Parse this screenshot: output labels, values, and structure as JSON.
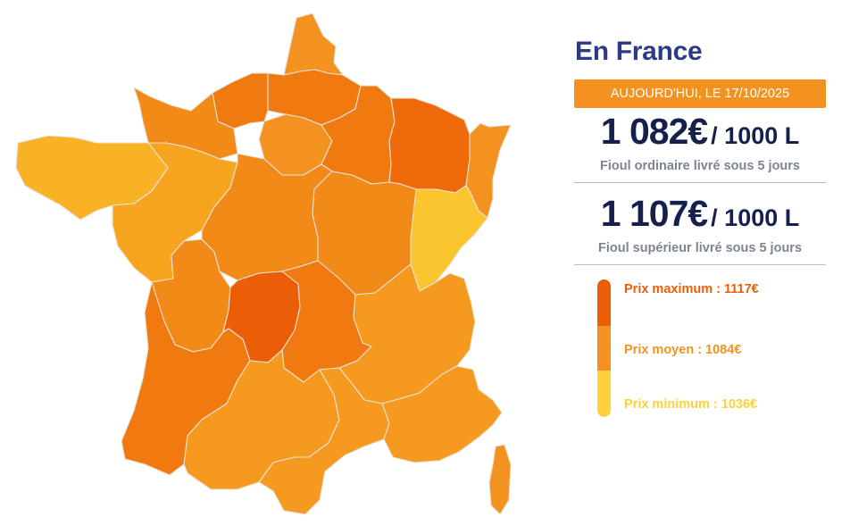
{
  "panel": {
    "title": "En France",
    "date_banner": "AUJOURD'HUI, LE 17/10/2025",
    "prices": [
      {
        "value": "1 082€",
        "unit": "/ 1000 L",
        "description": "Fioul ordinaire livré sous 5 jours"
      },
      {
        "value": "1 107€",
        "unit": "/ 1000 L",
        "description": "Fioul supérieur livré sous 5 jours"
      }
    ],
    "legend": {
      "max_label": "Prix maximum : 1117€",
      "avg_label": "Prix moyen : 1084€",
      "min_label": "Prix minimum : 1036€"
    }
  },
  "colors": {
    "title": "#2b3c84",
    "banner": "#f39220",
    "price": "#16204d",
    "max": "#ec5e06",
    "avg": "#f39220",
    "min": "#fdd238",
    "region_border": "#e8e2da"
  },
  "map": {
    "regions": [
      {
        "id": "nord",
        "shade": "avg"
      },
      {
        "id": "picardie",
        "shade": "orange2"
      },
      {
        "id": "haute-normandie",
        "shade": "orange2"
      },
      {
        "id": "basse-normandie",
        "shade": "orange3"
      },
      {
        "id": "ile-de-france",
        "shade": "avg"
      },
      {
        "id": "champagne-ardenne",
        "shade": "orange2"
      },
      {
        "id": "lorraine",
        "shade": "max2"
      },
      {
        "id": "alsace",
        "shade": "avg"
      },
      {
        "id": "bretagne",
        "shade": "light"
      },
      {
        "id": "pays-de-la-loire",
        "shade": "light2"
      },
      {
        "id": "centre",
        "shade": "orange3"
      },
      {
        "id": "bourgogne",
        "shade": "orange3"
      },
      {
        "id": "franche-comte",
        "shade": "min"
      },
      {
        "id": "poitou-charentes",
        "shade": "orange3"
      },
      {
        "id": "limousin",
        "shade": "max"
      },
      {
        "id": "auvergne",
        "shade": "orange2"
      },
      {
        "id": "rhone-alpes",
        "shade": "avg2"
      },
      {
        "id": "aquitaine",
        "shade": "orange2"
      },
      {
        "id": "midi-pyrenees",
        "shade": "avg2"
      },
      {
        "id": "languedoc-roussillon",
        "shade": "avg2"
      },
      {
        "id": "paca",
        "shade": "avg2"
      },
      {
        "id": "corse",
        "shade": "avg"
      }
    ]
  }
}
